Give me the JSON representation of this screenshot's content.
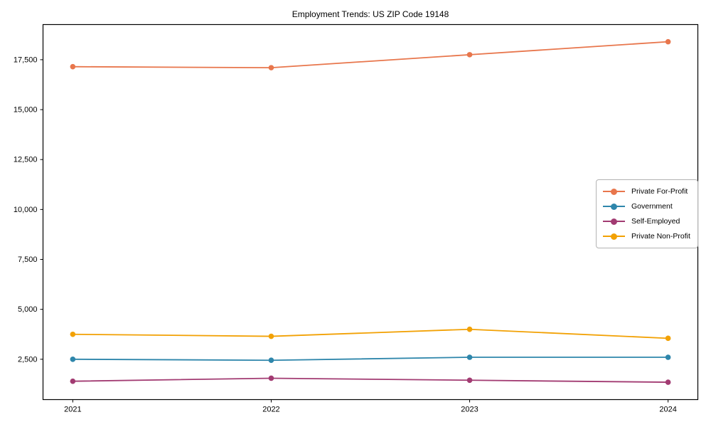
{
  "chart_data": {
    "type": "line",
    "title": "Employment Trends: US ZIP Code 19148",
    "x": [
      2021,
      2022,
      2023,
      2024
    ],
    "x_tick_labels": [
      "2021",
      "2022",
      "2023",
      "2024"
    ],
    "series": [
      {
        "name": "Private For-Profit",
        "color": "#E8764C",
        "values": [
          17150,
          17100,
          17750,
          18400
        ]
      },
      {
        "name": "Government",
        "color": "#2E86AB",
        "values": [
          2500,
          2450,
          2600,
          2600
        ]
      },
      {
        "name": "Self-Employed",
        "color": "#A23B72",
        "values": [
          1400,
          1550,
          1450,
          1350
        ]
      },
      {
        "name": "Private Non-Profit",
        "color": "#F2A104",
        "values": [
          3750,
          3650,
          4000,
          3550
        ]
      }
    ],
    "yticks": [
      2500,
      5000,
      7500,
      10000,
      12500,
      15000,
      17500
    ],
    "ytick_labels": [
      "2,500",
      "5,000",
      "7,500",
      "10,000",
      "12,500",
      "15,000",
      "17,500"
    ],
    "ylim": [
      480,
      19260
    ],
    "xlim": [
      2020.85,
      2024.15
    ],
    "xlabel": "",
    "ylabel": "",
    "grid": false,
    "marker": "circle",
    "legend_position": "right-middle",
    "axis_color": "#000000",
    "legend_border_color": "#b3b3b3"
  }
}
